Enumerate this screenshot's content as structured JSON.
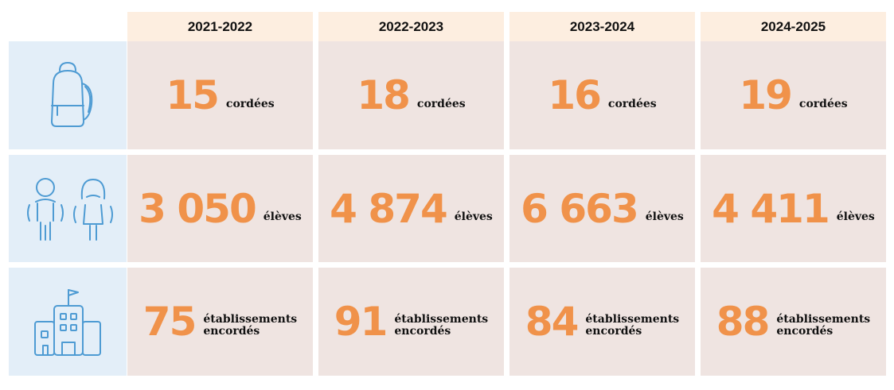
{
  "chart_data": {
    "type": "table",
    "columns": [
      "2021-2022",
      "2022-2023",
      "2023-2024",
      "2024-2025"
    ],
    "rows": [
      {
        "icon": "backpack-icon",
        "values": [
          "15",
          "18",
          "16",
          "19"
        ],
        "unit": [
          "cordées"
        ]
      },
      {
        "icon": "students-icon",
        "values": [
          "3 050",
          "4 874",
          "6 663",
          "4 411"
        ],
        "unit": [
          "élèves"
        ]
      },
      {
        "icon": "school-building-icon",
        "values": [
          "75",
          "91",
          "84",
          "88"
        ],
        "unit": [
          "établissements",
          "encordés"
        ]
      }
    ]
  },
  "colors": {
    "header_bg": "#fdeee0",
    "icon_bg": "#e3eef8",
    "cell_bg": "#efe4e1",
    "number": "#f0924a",
    "icon_stroke": "#4e9bd3"
  }
}
